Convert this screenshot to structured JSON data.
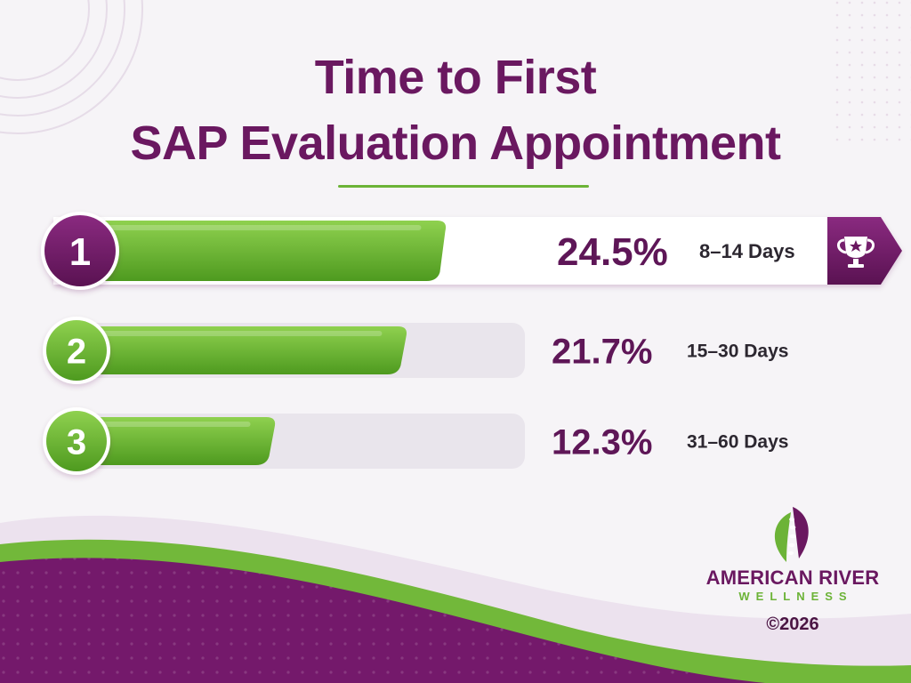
{
  "title_lines": [
    "Time to First",
    "SAP Evaluation Appointment"
  ],
  "chart_data": {
    "type": "bar",
    "orientation": "horizontal",
    "ranks": [
      "1",
      "2",
      "3"
    ],
    "categories": [
      "8–14 Days",
      "15–30 Days",
      "31–60 Days"
    ],
    "values": [
      24.5,
      21.7,
      12.3
    ],
    "value_labels": [
      "24.5%",
      "21.7%",
      "12.3%"
    ],
    "xlim": [
      0,
      30
    ],
    "grid": false,
    "legend": "none"
  },
  "colors": {
    "primary_purple": "#6a1860",
    "accent_green": "#6cb337",
    "track_gray": "#e9e5ec",
    "background": "#f6f4f7"
  },
  "icons": {
    "top_rank": "trophy-icon",
    "logo": "leaf-spine-icon"
  },
  "brand": {
    "name_line1": "AMERICAN RIVER",
    "name_line2": "WELLNESS",
    "copyright": "©2026"
  }
}
